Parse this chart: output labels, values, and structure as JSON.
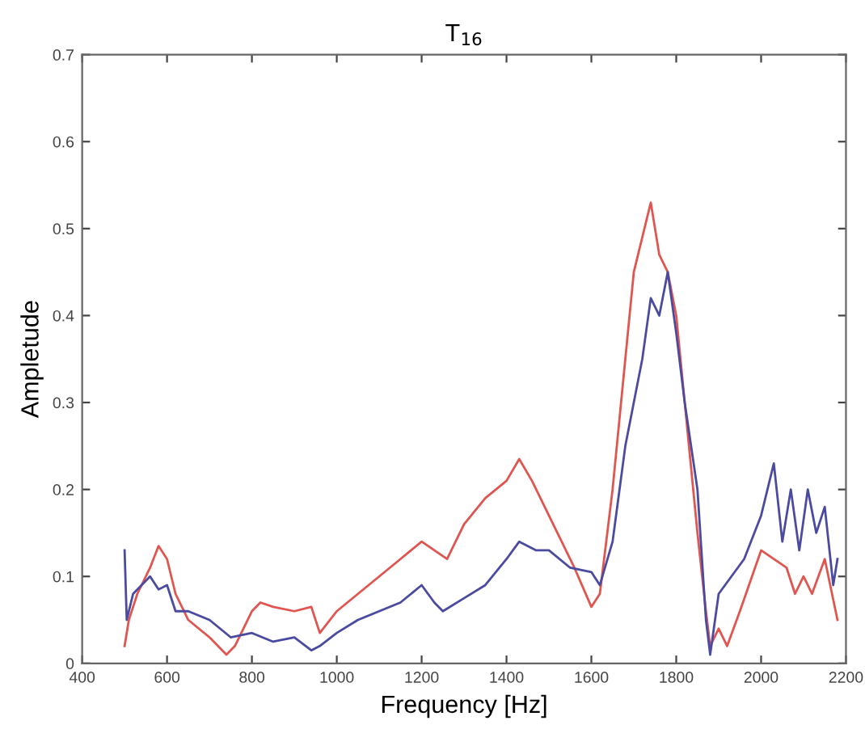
{
  "chart_data": {
    "type": "line",
    "title": "T$_{16}$",
    "xlabel": "Frequency [Hz]",
    "ylabel": "Ampletude",
    "xlim": [
      400,
      2200
    ],
    "xticks": [
      400,
      600,
      800,
      1000,
      1200,
      1400,
      1600,
      1800,
      2000,
      2200
    ],
    "ylim": [
      0,
      0.7
    ],
    "yticks": [
      0,
      0.1,
      0.2,
      0.3,
      0.4,
      0.5,
      0.6,
      0.7
    ],
    "grid": false,
    "legend": false,
    "marker": "none",
    "line_style": "solid",
    "series": [
      {
        "color": "#e0554f",
        "x": [
          500,
          510,
          530,
          560,
          580,
          600,
          620,
          650,
          700,
          740,
          760,
          800,
          820,
          850,
          900,
          940,
          960,
          1000,
          1050,
          1100,
          1150,
          1200,
          1230,
          1260,
          1300,
          1350,
          1400,
          1430,
          1460,
          1500,
          1540,
          1560,
          1600,
          1620,
          1650,
          1680,
          1700,
          1720,
          1740,
          1760,
          1780,
          1800,
          1820,
          1850,
          1870,
          1880,
          1900,
          1920,
          1950,
          2000,
          2030,
          2060,
          2080,
          2100,
          2120,
          2150,
          2180
        ],
        "values": [
          0.02,
          0.05,
          0.08,
          0.11,
          0.135,
          0.12,
          0.08,
          0.05,
          0.03,
          0.01,
          0.02,
          0.06,
          0.07,
          0.065,
          0.06,
          0.065,
          0.035,
          0.06,
          0.08,
          0.1,
          0.12,
          0.14,
          0.13,
          0.12,
          0.16,
          0.19,
          0.21,
          0.235,
          0.21,
          0.17,
          0.13,
          0.11,
          0.065,
          0.08,
          0.2,
          0.35,
          0.45,
          0.49,
          0.53,
          0.47,
          0.45,
          0.4,
          0.3,
          0.15,
          0.06,
          0.02,
          0.04,
          0.02,
          0.06,
          0.13,
          0.12,
          0.11,
          0.08,
          0.1,
          0.08,
          0.12,
          0.05
        ]
      },
      {
        "color": "#4a4aa0",
        "x": [
          500,
          505,
          520,
          540,
          560,
          580,
          600,
          620,
          650,
          700,
          750,
          800,
          850,
          900,
          940,
          960,
          1000,
          1050,
          1100,
          1150,
          1200,
          1230,
          1250,
          1300,
          1350,
          1400,
          1430,
          1470,
          1500,
          1550,
          1600,
          1620,
          1650,
          1680,
          1700,
          1720,
          1740,
          1760,
          1780,
          1800,
          1820,
          1850,
          1870,
          1880,
          1900,
          1930,
          1960,
          2000,
          2030,
          2050,
          2070,
          2090,
          2110,
          2130,
          2150,
          2170,
          2180
        ],
        "values": [
          0.13,
          0.05,
          0.08,
          0.09,
          0.1,
          0.085,
          0.09,
          0.06,
          0.06,
          0.05,
          0.03,
          0.035,
          0.025,
          0.03,
          0.015,
          0.02,
          0.035,
          0.05,
          0.06,
          0.07,
          0.09,
          0.07,
          0.06,
          0.075,
          0.09,
          0.12,
          0.14,
          0.13,
          0.13,
          0.11,
          0.105,
          0.09,
          0.14,
          0.25,
          0.3,
          0.35,
          0.42,
          0.4,
          0.45,
          0.38,
          0.3,
          0.2,
          0.05,
          0.01,
          0.08,
          0.1,
          0.12,
          0.17,
          0.23,
          0.14,
          0.2,
          0.13,
          0.2,
          0.15,
          0.18,
          0.09,
          0.12
        ]
      }
    ]
  }
}
